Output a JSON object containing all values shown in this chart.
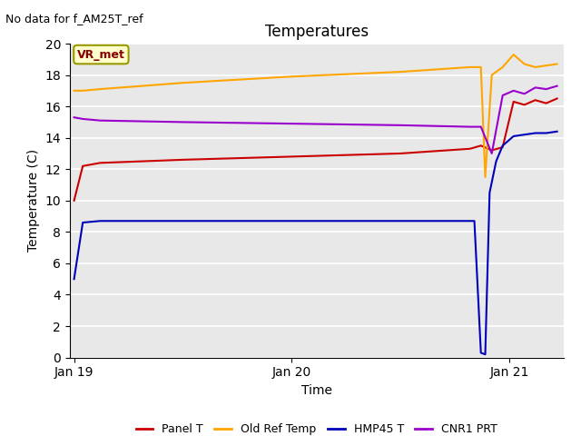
{
  "title": "Temperatures",
  "xlabel": "Time",
  "ylabel": "Temperature (C)",
  "note": "No data for f_AM25T_ref",
  "vr_label": "VR_met",
  "ylim": [
    0,
    20
  ],
  "yticks": [
    0,
    2,
    4,
    6,
    8,
    10,
    12,
    14,
    16,
    18,
    20
  ],
  "background_color": "#e8e8e8",
  "grid_color": "white",
  "series": {
    "Panel T": {
      "color": "#cc0000",
      "times": [
        0.0,
        0.04,
        0.12,
        0.5,
        1.0,
        1.5,
        1.82,
        1.87,
        1.92,
        1.97,
        2.02,
        2.07,
        2.12,
        2.17,
        2.22
      ],
      "values": [
        10.0,
        12.2,
        12.4,
        12.6,
        12.8,
        13.0,
        13.3,
        13.5,
        13.2,
        13.4,
        16.3,
        16.1,
        16.4,
        16.2,
        16.5
      ]
    },
    "Old Ref Temp": {
      "color": "#ffa500",
      "times": [
        0.0,
        0.04,
        0.12,
        0.5,
        1.0,
        1.5,
        1.82,
        1.87,
        1.89,
        1.92,
        1.97,
        2.02,
        2.07,
        2.12,
        2.17,
        2.22
      ],
      "values": [
        17.0,
        17.0,
        17.1,
        17.5,
        17.9,
        18.2,
        18.5,
        18.5,
        11.5,
        18.0,
        18.5,
        19.3,
        18.7,
        18.5,
        18.6,
        18.7
      ]
    },
    "HMP45 T": {
      "color": "#0000bb",
      "times": [
        0.0,
        0.04,
        0.12,
        0.5,
        1.0,
        1.5,
        1.82,
        1.84,
        1.87,
        1.89,
        1.91,
        1.94,
        1.97,
        2.02,
        2.07,
        2.12,
        2.17,
        2.22
      ],
      "values": [
        5.0,
        8.6,
        8.7,
        8.7,
        8.7,
        8.7,
        8.7,
        8.7,
        0.3,
        0.2,
        10.5,
        12.5,
        13.5,
        14.1,
        14.2,
        14.3,
        14.3,
        14.4
      ]
    },
    "CNR1 PRT": {
      "color": "#9900cc",
      "times": [
        0.0,
        0.04,
        0.12,
        0.5,
        1.0,
        1.5,
        1.82,
        1.87,
        1.92,
        1.97,
        2.02,
        2.07,
        2.12,
        2.17,
        2.22
      ],
      "values": [
        15.3,
        15.2,
        15.1,
        15.0,
        14.9,
        14.8,
        14.7,
        14.7,
        13.0,
        16.7,
        17.0,
        16.8,
        17.2,
        17.1,
        17.3
      ]
    }
  },
  "xticks": [
    0.0,
    1.0,
    2.0
  ],
  "xticklabels": [
    "Jan 19",
    "Jan 20",
    "Jan 21"
  ],
  "legend_entries": [
    "Panel T",
    "Old Ref Temp",
    "HMP45 T",
    "CNR1 PRT"
  ],
  "legend_colors": [
    "#cc0000",
    "#ffa500",
    "#0000bb",
    "#9900cc"
  ]
}
